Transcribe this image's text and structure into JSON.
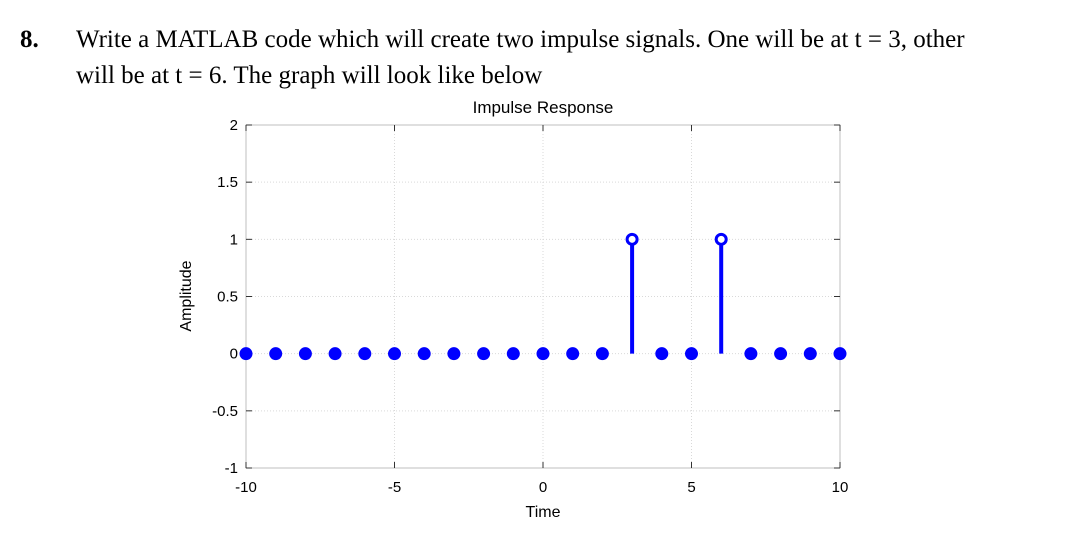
{
  "question": {
    "number": "8.",
    "line1": "Write a MATLAB code which will create two impulse signals. One will be at t = 3, other",
    "line2": "will be at t = 6. The graph will look like below"
  },
  "chart_data": {
    "type": "stem",
    "title": "Impulse Response",
    "xlabel": "Time",
    "ylabel": "Amplitude",
    "xlim": [
      -10,
      10
    ],
    "ylim": [
      -1,
      2
    ],
    "xticks": [
      -10,
      -5,
      0,
      5,
      10
    ],
    "xtick_labels": [
      "-10",
      "-5",
      "0",
      "5",
      "10"
    ],
    "yticks": [
      -1,
      -0.5,
      0,
      0.5,
      1,
      1.5,
      2
    ],
    "ytick_labels": [
      "-1",
      "-0.5",
      "0",
      "0.5",
      "1",
      "1.5",
      "2"
    ],
    "grid": true,
    "x": [
      -10,
      -9,
      -8,
      -7,
      -6,
      -5,
      -4,
      -3,
      -2,
      -1,
      0,
      1,
      2,
      3,
      4,
      5,
      6,
      7,
      8,
      9,
      10
    ],
    "y": [
      0,
      0,
      0,
      0,
      0,
      0,
      0,
      0,
      0,
      0,
      0,
      0,
      0,
      1,
      0,
      0,
      1,
      0,
      0,
      0,
      0
    ],
    "color": "#0000ff"
  }
}
